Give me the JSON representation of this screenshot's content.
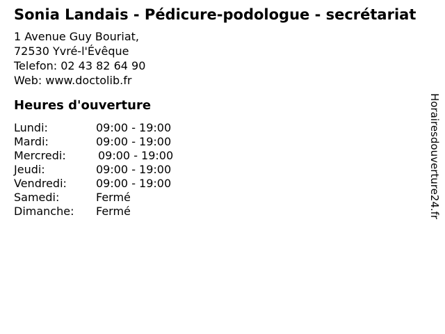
{
  "header": {
    "title": "Sonia Landais - Pédicure-podologue - secrétariat"
  },
  "contact": {
    "address_line1": "1 Avenue Guy Bouriat,",
    "address_line2": "72530 Yvré-l'Évêque",
    "phone_label": "Telefon:",
    "phone_number": "02 43 82 64 90",
    "web_label": "Web:",
    "web_url": "www.doctolib.fr"
  },
  "hours": {
    "heading": "Heures d'ouverture",
    "rows": [
      {
        "day": "Lundi:",
        "time": "09:00 - 19:00"
      },
      {
        "day": "Mardi:",
        "time": "09:00 - 19:00"
      },
      {
        "day": "Mercredi:",
        "time": "09:00 - 19:00"
      },
      {
        "day": "Jeudi:",
        "time": "09:00 - 19:00"
      },
      {
        "day": "Vendredi:",
        "time": "09:00 - 19:00"
      },
      {
        "day": "Samedi:",
        "time": "Fermé"
      },
      {
        "day": "Dimanche:",
        "time": "Fermé"
      }
    ]
  },
  "watermark": {
    "text": "Horairesdouverture24.fr"
  },
  "colors": {
    "text": "#000000",
    "background": "#ffffff"
  }
}
